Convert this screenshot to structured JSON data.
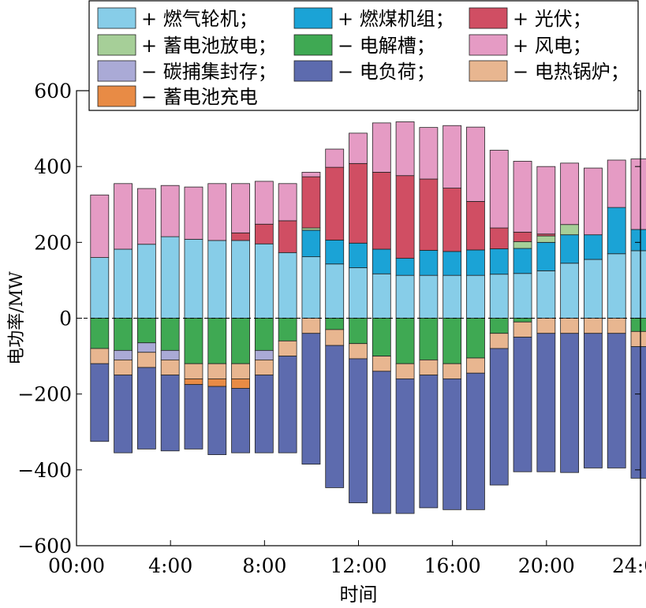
{
  "chart_data": {
    "type": "bar",
    "stacked": true,
    "title": "",
    "xlabel": "时间",
    "ylabel": "电功率/MW",
    "ylim": [
      -600,
      600
    ],
    "xlim": [
      0,
      24
    ],
    "yticks": [
      -600,
      -400,
      -200,
      0,
      200,
      400,
      600
    ],
    "ytick_labels": [
      "−600",
      "−400",
      "−200",
      "0",
      "200",
      "400",
      "600"
    ],
    "xticks": [
      0,
      4,
      8,
      12,
      16,
      20,
      24
    ],
    "xtick_labels": [
      "00:00",
      "4:00",
      "8:00",
      "12:00",
      "16:00",
      "20:00",
      "24:00"
    ],
    "zero_line": "dashed",
    "grid": false,
    "legend_position": "top",
    "categories": [
      1,
      2,
      3,
      4,
      5,
      6,
      7,
      8,
      9,
      10,
      11,
      12,
      13,
      14,
      15,
      16,
      17,
      18,
      19,
      20,
      21,
      22,
      23,
      24
    ],
    "series": [
      {
        "name": "+ 燃气轮机；",
        "color": "#87CDE8",
        "values": [
          160,
          182,
          195,
          215,
          208,
          205,
          205,
          196,
          173,
          162,
          143,
          133,
          117,
          113,
          113,
          113,
          113,
          116,
          118,
          125,
          145,
          155,
          170,
          178
        ]
      },
      {
        "name": "+ 燃煤机组；",
        "color": "#1BA3D6",
        "values": [
          0,
          0,
          0,
          0,
          0,
          0,
          0,
          0,
          0,
          70,
          63,
          65,
          65,
          45,
          66,
          63,
          67,
          67,
          66,
          75,
          75,
          65,
          122,
          56
        ]
      },
      {
        "name": "+ 光伏；",
        "color": "#D04E63",
        "values": [
          0,
          0,
          0,
          0,
          0,
          0,
          20,
          52,
          84,
          135,
          192,
          210,
          203,
          218,
          188,
          167,
          128,
          55,
          25,
          5,
          0,
          0,
          0,
          0
        ]
      },
      {
        "name": "+ 蓄电池放电；",
        "color": "#A6CF98",
        "values": [
          0,
          0,
          0,
          0,
          0,
          0,
          0,
          0,
          0,
          6,
          0,
          0,
          0,
          0,
          0,
          0,
          0,
          0,
          18,
          17,
          27,
          0,
          0,
          0
        ]
      },
      {
        "name": "+ 风电；",
        "color": "#E59BC4",
        "values": [
          165,
          173,
          147,
          135,
          138,
          150,
          130,
          113,
          98,
          12,
          48,
          80,
          130,
          142,
          136,
          165,
          196,
          205,
          187,
          178,
          162,
          176,
          125,
          186
        ]
      },
      {
        "name": "− 电解槽；",
        "color": "#3FA953",
        "values": [
          -80,
          -85,
          -65,
          -85,
          -120,
          -120,
          -120,
          -85,
          -60,
          0,
          -30,
          -67,
          -100,
          -120,
          -110,
          -120,
          -105,
          -40,
          -10,
          0,
          0,
          0,
          0,
          -35
        ]
      },
      {
        "name": "− 碳捕集封存；",
        "color": "#AAAAD6",
        "values": [
          0,
          -25,
          -25,
          -25,
          0,
          0,
          0,
          -25,
          0,
          0,
          0,
          0,
          0,
          0,
          0,
          0,
          0,
          0,
          0,
          0,
          0,
          0,
          0,
          0
        ]
      },
      {
        "name": "− 电热锅炉；",
        "color": "#E8B690",
        "values": [
          -40,
          -40,
          -40,
          -40,
          -40,
          -40,
          -40,
          -40,
          -40,
          -40,
          -42,
          -40,
          -40,
          -40,
          -40,
          -40,
          -40,
          -40,
          -40,
          -40,
          -40,
          -40,
          -40,
          -40
        ]
      },
      {
        "name": "− 蓄电池充电",
        "color": "#E88B45",
        "values": [
          0,
          0,
          0,
          0,
          -15,
          -20,
          -25,
          0,
          0,
          0,
          0,
          0,
          0,
          0,
          0,
          0,
          0,
          0,
          0,
          0,
          0,
          0,
          0,
          0
        ]
      },
      {
        "name": "− 电负荷；",
        "color": "#5D6BAE",
        "values": [
          -205,
          -205,
          -215,
          -200,
          -170,
          -180,
          -170,
          -205,
          -255,
          -345,
          -375,
          -380,
          -375,
          -355,
          -350,
          -345,
          -360,
          -360,
          -355,
          -365,
          -367,
          -355,
          -355,
          -347
        ]
      }
    ],
    "legend_order": [
      "+ 燃气轮机；",
      "+ 燃煤机组；",
      "+ 光伏；",
      "+ 蓄电池放电；",
      "− 电解槽；",
      "+ 风电；",
      "− 碳捕集封存；",
      "− 电负荷；",
      "− 电热锅炉；",
      "− 蓄电池充电"
    ]
  }
}
